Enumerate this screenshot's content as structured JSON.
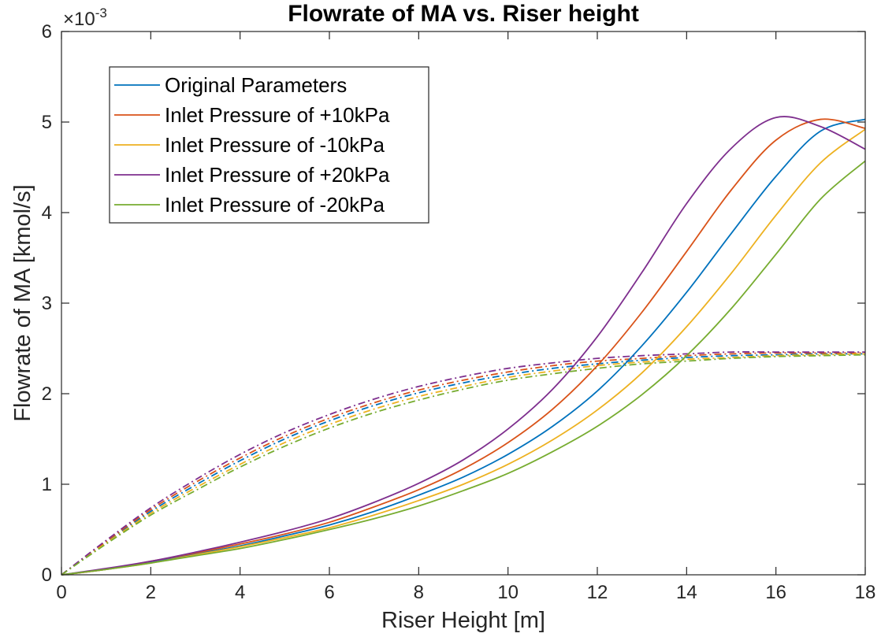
{
  "chart_data": {
    "type": "line",
    "title": "Flowrate of MA vs. Riser height",
    "xlabel": "Riser Height [m]",
    "ylabel": "Flowrate of MA [kmol/s]",
    "y_exponent_label": "×10",
    "y_exponent_power": "-3",
    "xlim": [
      0,
      18
    ],
    "ylim": [
      0,
      0.006
    ],
    "xticks": [
      "0",
      "2",
      "4",
      "6",
      "8",
      "10",
      "12",
      "14",
      "16",
      "18"
    ],
    "yticks": [
      "0",
      "1",
      "2",
      "3",
      "4",
      "5",
      "6"
    ],
    "grid": false,
    "legend_position": "top-left",
    "x": [
      0,
      1,
      2,
      3,
      4,
      5,
      6,
      7,
      8,
      9,
      10,
      11,
      12,
      13,
      14,
      15,
      16,
      17,
      18
    ],
    "series": [
      {
        "name": "Original Parameters",
        "color": "#0072BD",
        "style": "solid",
        "values": [
          0,
          6e-05,
          0.00014,
          0.00023,
          0.00032,
          0.00043,
          0.00055,
          0.0007,
          0.00088,
          0.00108,
          0.00133,
          0.00164,
          0.00203,
          0.00253,
          0.00312,
          0.00377,
          0.0044,
          0.0049,
          0.00503
        ]
      },
      {
        "name": "Inlet Pressure of +10kPa",
        "color": "#D95319",
        "style": "solid",
        "values": [
          0,
          6e-05,
          0.00015,
          0.00024,
          0.00034,
          0.00045,
          0.00058,
          0.00075,
          0.00094,
          0.00117,
          0.00146,
          0.00183,
          0.00231,
          0.0029,
          0.00357,
          0.00425,
          0.0048,
          0.00503,
          0.00493
        ]
      },
      {
        "name": "Inlet Pressure of -10kPa",
        "color": "#EDB120",
        "style": "solid",
        "values": [
          0,
          6e-05,
          0.00013,
          0.00022,
          0.00031,
          0.00041,
          0.00052,
          0.00066,
          0.00082,
          0.001,
          0.00122,
          0.00149,
          0.00182,
          0.00223,
          0.00274,
          0.00333,
          0.00397,
          0.00455,
          0.00492
        ]
      },
      {
        "name": "Inlet Pressure of +20kPa",
        "color": "#7E2F8E",
        "style": "solid",
        "values": [
          0,
          7e-05,
          0.00015,
          0.00025,
          0.00036,
          0.00048,
          0.00062,
          0.0008,
          0.00101,
          0.00127,
          0.00161,
          0.00205,
          0.00263,
          0.00334,
          0.0041,
          0.00471,
          0.00505,
          0.00495,
          0.0047
        ]
      },
      {
        "name": "Inlet Pressure of -20kPa",
        "color": "#77AC30",
        "style": "solid",
        "values": [
          0,
          6e-05,
          0.00013,
          0.00021,
          0.00029,
          0.00039,
          0.0005,
          0.00062,
          0.00076,
          0.00093,
          0.00112,
          0.00136,
          0.00164,
          0.00199,
          0.00242,
          0.00294,
          0.00354,
          0.00415,
          0.00457
        ]
      },
      {
        "color": "#0072BD",
        "style": "dashdot",
        "values": [
          0,
          0.00036,
          0.0007,
          0.00099,
          0.00126,
          0.0015,
          0.0017,
          0.00187,
          0.00201,
          0.00212,
          0.00221,
          0.00228,
          0.00233,
          0.00237,
          0.0024,
          0.00242,
          0.00243,
          0.00244,
          0.00244
        ]
      },
      {
        "color": "#D95319",
        "style": "dashdot",
        "values": [
          0,
          0.00037,
          0.00072,
          0.00102,
          0.00129,
          0.00153,
          0.00173,
          0.0019,
          0.00204,
          0.00215,
          0.00224,
          0.00231,
          0.00236,
          0.00239,
          0.00242,
          0.00244,
          0.00245,
          0.00245,
          0.00245
        ]
      },
      {
        "color": "#EDB120",
        "style": "dashdot",
        "values": [
          0,
          0.00035,
          0.00068,
          0.00096,
          0.00122,
          0.00146,
          0.00166,
          0.00183,
          0.00197,
          0.00208,
          0.00218,
          0.00225,
          0.00231,
          0.00235,
          0.00238,
          0.0024,
          0.00242,
          0.00243,
          0.00244
        ]
      },
      {
        "color": "#7E2F8E",
        "style": "dashdot",
        "values": [
          0,
          0.00038,
          0.00074,
          0.00105,
          0.00133,
          0.00157,
          0.00177,
          0.00194,
          0.00208,
          0.00219,
          0.00228,
          0.00234,
          0.00239,
          0.00242,
          0.00244,
          0.00246,
          0.00246,
          0.00246,
          0.00246
        ]
      },
      {
        "color": "#77AC30",
        "style": "dashdot",
        "values": [
          0,
          0.00034,
          0.00066,
          0.00093,
          0.00119,
          0.00142,
          0.00162,
          0.00179,
          0.00193,
          0.00205,
          0.00215,
          0.00222,
          0.00228,
          0.00233,
          0.00236,
          0.00239,
          0.00241,
          0.00242,
          0.00243
        ]
      }
    ]
  }
}
